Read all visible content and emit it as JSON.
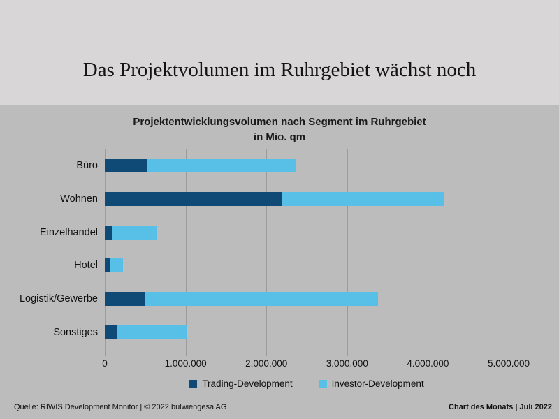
{
  "page": {
    "title": "Das Projektvolumen im Ruhrgebiet wächst noch",
    "footer_left": "Quelle: RIWIS Development Monitor | © 2022 bulwiengesa AG",
    "footer_right": "Chart des Monats | Juli 2022"
  },
  "colors": {
    "header_bg": "#d8d6d6",
    "body_bg": "#bdbcbc",
    "gridline": "#9c9c9c",
    "trading_blue": "#0e4a75",
    "investor_blue": "#58bfe6"
  },
  "chart_data": {
    "type": "bar",
    "orientation": "horizontal",
    "stacked": true,
    "title": "Projektentwicklungsvolumen nach Segment im Ruhrgebiet",
    "subtitle": "in Mio. qm",
    "categories": [
      "Büro",
      "Wohnen",
      "Einzelhandel",
      "Hotel",
      "Logistik/Gewerbe",
      "Sonstiges"
    ],
    "series": [
      {
        "name": "Trading-Development",
        "color": "#0e4a75",
        "values": [
          520000,
          2200000,
          90000,
          65000,
          500000,
          160000
        ]
      },
      {
        "name": "Investor-Development",
        "color": "#58bfe6",
        "values": [
          1840000,
          2000000,
          550000,
          160000,
          2880000,
          860000
        ]
      }
    ],
    "xlim": [
      0,
      5000000
    ],
    "x_ticks": [
      0,
      1000000,
      2000000,
      3000000,
      4000000,
      5000000
    ],
    "x_tick_labels": [
      "0",
      "1.000.000",
      "2.000.000",
      "3.000.000",
      "4.000.000",
      "5.000.000"
    ],
    "grid": true,
    "legend_position": "bottom",
    "unit": "qm"
  }
}
